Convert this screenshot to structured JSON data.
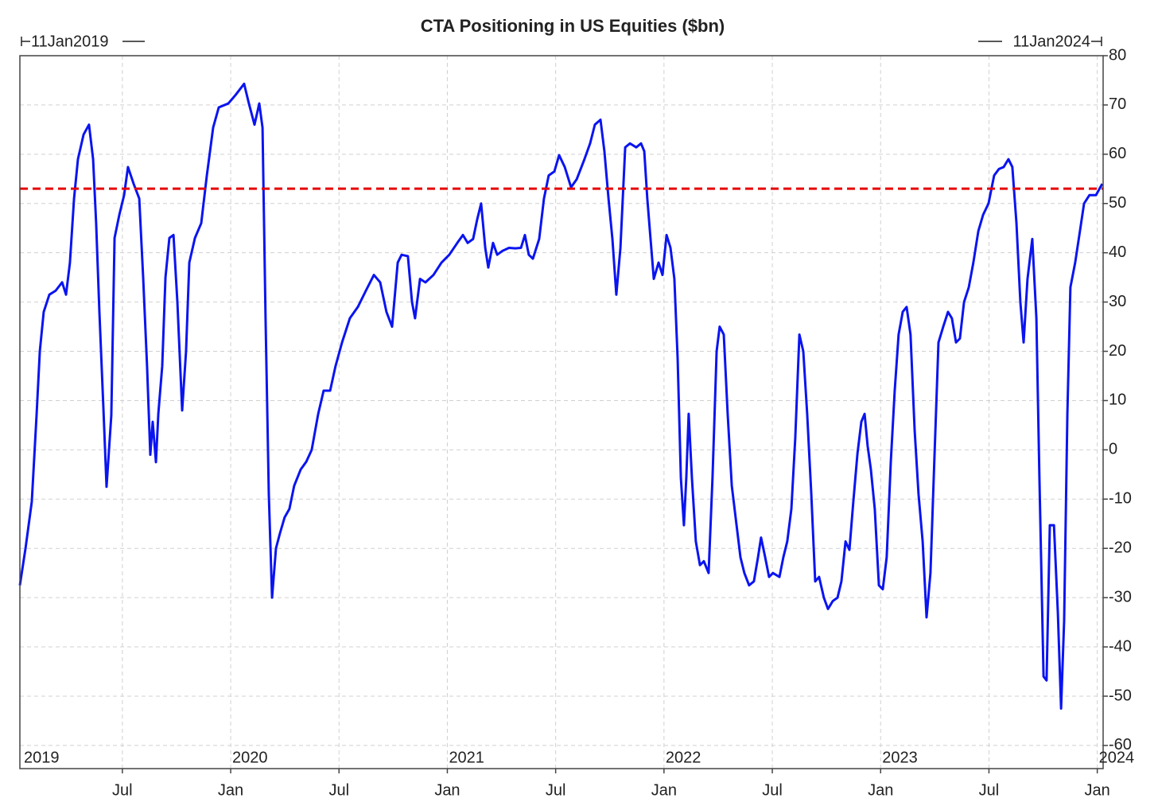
{
  "chart_data": {
    "type": "line",
    "title": "CTA Positioning in US Equities ($bn)",
    "start_label": "11Jan2019",
    "end_label": "11Jan2024",
    "color": "#0a14f0",
    "grid": true,
    "hline": {
      "value": 53,
      "color": "#e60000"
    },
    "xlim": [
      2019.027,
      2024.027
    ],
    "ylim": [
      -64.7,
      80
    ],
    "yticks": [
      -60,
      -50,
      -40,
      -30,
      -20,
      -10,
      0,
      10,
      20,
      30,
      40,
      50,
      60,
      70,
      80
    ],
    "xticks": [
      {
        "value": 2019.5,
        "label": "Jul"
      },
      {
        "value": 2020,
        "label": "Jan"
      },
      {
        "value": 2020.5,
        "label": "Jul"
      },
      {
        "value": 2021,
        "label": "Jan"
      },
      {
        "value": 2021.5,
        "label": "Jul"
      },
      {
        "value": 2022,
        "label": "Jan"
      },
      {
        "value": 2022.5,
        "label": "Jul"
      },
      {
        "value": 2023,
        "label": "Jan"
      },
      {
        "value": 2023.5,
        "label": "Jul"
      },
      {
        "value": 2024,
        "label": "Jan"
      }
    ],
    "year_labels": [
      {
        "value": 2019,
        "label": "2019"
      },
      {
        "value": 2020,
        "label": "2020"
      },
      {
        "value": 2021,
        "label": "2021"
      },
      {
        "value": 2022,
        "label": "2022"
      },
      {
        "value": 2023,
        "label": "2023"
      },
      {
        "value": 2024,
        "label": "2024"
      }
    ],
    "x": [
      2019.027,
      2019.053,
      2019.082,
      2019.104,
      2019.119,
      2019.137,
      2019.163,
      2019.192,
      2019.222,
      2019.24,
      2019.258,
      2019.277,
      2019.295,
      2019.321,
      2019.346,
      2019.365,
      2019.379,
      2019.394,
      2019.412,
      2019.427,
      2019.449,
      2019.464,
      2019.486,
      2019.508,
      2019.526,
      2019.552,
      2019.578,
      2019.596,
      2019.614,
      2019.629,
      2019.64,
      2019.655,
      2019.666,
      2019.684,
      2019.699,
      2019.717,
      2019.736,
      2019.754,
      2019.776,
      2019.794,
      2019.809,
      2019.835,
      2019.864,
      2019.89,
      2019.919,
      2019.945,
      2019.989,
      2020.022,
      2020.062,
      2020.084,
      2020.11,
      2020.132,
      2020.147,
      2020.161,
      2020.176,
      2020.191,
      2020.209,
      2020.227,
      2020.249,
      2020.271,
      2020.293,
      2020.323,
      2020.349,
      2020.374,
      2020.404,
      2020.429,
      2020.459,
      2020.484,
      2020.514,
      2020.55,
      2020.587,
      2020.624,
      2020.661,
      2020.69,
      2020.719,
      2020.745,
      2020.771,
      2020.789,
      2020.818,
      2020.837,
      2020.851,
      2020.874,
      2020.899,
      2020.936,
      2020.973,
      2021.009,
      2021.046,
      2021.072,
      2021.094,
      2021.119,
      2021.138,
      2021.156,
      2021.175,
      2021.189,
      2021.211,
      2021.23,
      2021.255,
      2021.285,
      2021.314,
      2021.34,
      2021.358,
      2021.376,
      2021.395,
      2021.424,
      2021.446,
      2021.468,
      2021.494,
      2021.516,
      2021.542,
      2021.571,
      2021.597,
      2021.633,
      2021.659,
      2021.681,
      2021.707,
      2021.725,
      2021.744,
      2021.762,
      2021.78,
      2021.799,
      2021.821,
      2021.843,
      2021.872,
      2021.894,
      2021.909,
      2021.923,
      2021.938,
      2021.953,
      2021.975,
      2021.993,
      2022.012,
      2022.03,
      2022.048,
      2022.063,
      2022.078,
      2022.092,
      2022.103,
      2022.114,
      2022.129,
      2022.147,
      2022.166,
      2022.184,
      2022.206,
      2022.224,
      2022.243,
      2022.257,
      2022.276,
      2022.294,
      2022.313,
      2022.335,
      2022.353,
      2022.371,
      2022.393,
      2022.415,
      2022.434,
      2022.448,
      2022.467,
      2022.485,
      2022.503,
      2022.533,
      2022.551,
      2022.569,
      2022.588,
      2022.606,
      2022.625,
      2022.643,
      2022.661,
      2022.68,
      2022.698,
      2022.716,
      2022.738,
      2022.757,
      2022.779,
      2022.801,
      2022.819,
      2022.838,
      2022.856,
      2022.874,
      2022.893,
      2022.911,
      2022.926,
      2022.94,
      2022.955,
      2022.973,
      2022.992,
      2023.01,
      2023.028,
      2023.047,
      2023.065,
      2023.083,
      2023.102,
      2023.12,
      2023.138,
      2023.157,
      2023.175,
      2023.194,
      2023.212,
      2023.23,
      2023.249,
      2023.267,
      2023.289,
      2023.311,
      2023.329,
      2023.348,
      2023.366,
      2023.385,
      2023.407,
      2023.428,
      2023.451,
      2023.473,
      2023.498,
      2023.524,
      2023.546,
      2023.568,
      2023.59,
      2023.608,
      2023.627,
      2023.645,
      2023.66,
      2023.678,
      2023.7,
      2023.719,
      2023.733,
      2023.752,
      2023.766,
      2023.781,
      2023.8,
      2023.818,
      2023.833,
      2023.847,
      2023.862,
      2023.876,
      2023.898,
      2023.92,
      2023.939,
      2023.964,
      2023.994,
      2024.023
    ],
    "values": [
      -27.5,
      -20,
      -10.5,
      7,
      20,
      28,
      31.5,
      32.3,
      34,
      31.5,
      38,
      51,
      59,
      64,
      66,
      59,
      46,
      28,
      9,
      -7.5,
      7,
      43,
      47.7,
      51.7,
      57.4,
      54,
      51,
      35,
      17,
      -1,
      5.7,
      -2.5,
      7.3,
      17,
      35,
      43,
      43.6,
      30,
      8,
      20,
      38,
      43,
      46,
      55.7,
      65.4,
      69.5,
      70.3,
      72,
      74.3,
      70.3,
      66,
      70.3,
      65.4,
      26.7,
      -9,
      -30,
      -20,
      -17,
      -13.7,
      -12,
      -7.3,
      -4,
      -2.4,
      0,
      7.3,
      12,
      12,
      17,
      21.8,
      26.7,
      29,
      32.3,
      35.5,
      34,
      28,
      25,
      38,
      39.6,
      39.3,
      30,
      26.7,
      34.7,
      34,
      35.5,
      38,
      39.6,
      42,
      43.6,
      42,
      42.8,
      46.8,
      50,
      41,
      37,
      42,
      39.6,
      40.4,
      41,
      40.9,
      41,
      43.6,
      39.6,
      38.8,
      42.8,
      51,
      55.7,
      56.5,
      59.8,
      57.4,
      53.3,
      54.9,
      59,
      62.2,
      66,
      67,
      60.6,
      51,
      42.8,
      31.5,
      41,
      61.4,
      62.2,
      61.4,
      62.2,
      60.6,
      51,
      42.8,
      34.7,
      38,
      35.5,
      43.6,
      41,
      34.7,
      18.6,
      -5.7,
      -15.3,
      -5.7,
      7.3,
      -5.7,
      -18.6,
      -23.4,
      -22.6,
      -25,
      -5.7,
      20,
      25,
      23.4,
      7.3,
      -7.3,
      -15.3,
      -21.8,
      -25,
      -27.5,
      -26.7,
      -21.8,
      -17.8,
      -21.8,
      -25.8,
      -25,
      -25.8,
      -21.8,
      -18.6,
      -12,
      2.4,
      23.4,
      20,
      7.3,
      -9,
      -26.7,
      -25.8,
      -30,
      -32.3,
      -30.7,
      -30,
      -26.7,
      -18.6,
      -20.3,
      -10.5,
      -0.8,
      5.7,
      7.3,
      0.8,
      -4,
      -12,
      -27.5,
      -28.3,
      -21.8,
      -2.4,
      12,
      23.4,
      28,
      29,
      23.4,
      4,
      -9,
      -18.6,
      -34,
      -25,
      -0.8,
      21.8,
      25,
      28,
      26.7,
      21.8,
      22.6,
      30,
      33,
      38,
      44.4,
      47.7,
      50,
      55.7,
      57,
      57.4,
      59,
      57.4,
      46,
      30,
      21.8,
      34.7,
      42.8,
      26.7,
      -5.7,
      -46,
      -46.8,
      -15.3,
      -15.3,
      -33,
      -52.5,
      -34.7,
      7.3,
      33,
      38,
      44.4,
      50,
      51.7,
      51.7,
      54
    ]
  }
}
